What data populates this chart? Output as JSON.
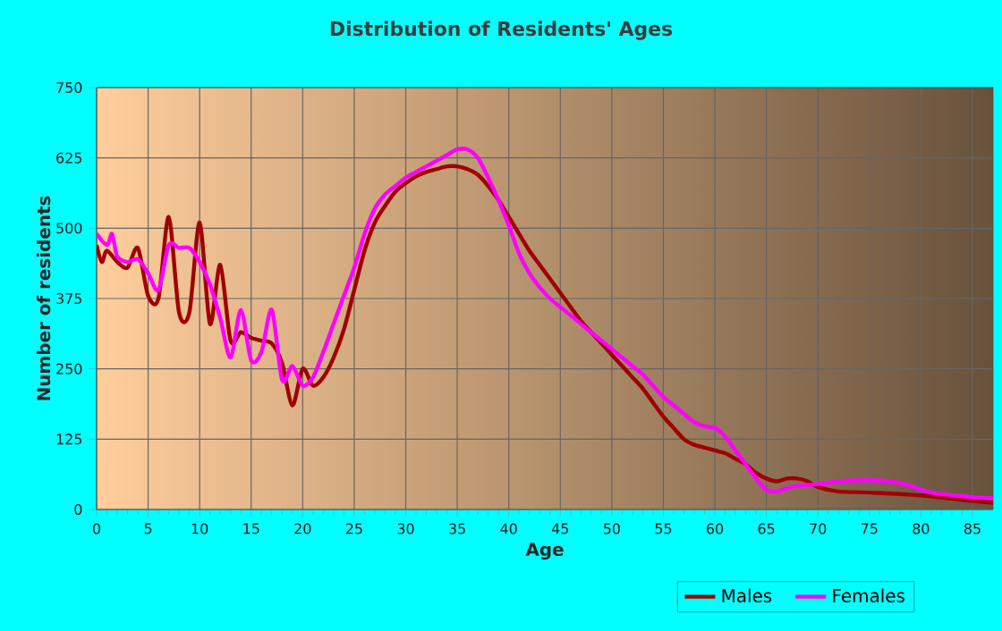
{
  "chart_data": {
    "type": "line",
    "title": "Distribution of Residents' Ages",
    "xlabel": "Age",
    "ylabel": "Number of residents",
    "xlim": [
      0,
      87
    ],
    "xticks": [
      0,
      5,
      10,
      15,
      20,
      25,
      30,
      35,
      40,
      45,
      50,
      55,
      60,
      65,
      70,
      75,
      80,
      85
    ],
    "ylim": [
      0,
      750
    ],
    "yticks": [
      0,
      125,
      250,
      375,
      500,
      625,
      750
    ],
    "grid": true,
    "legend": "bottom",
    "marker": "none",
    "line_style": "solid",
    "series": [
      {
        "name": "Males",
        "color": "#a00000",
        "x": [
          0,
          0.5,
          1,
          2,
          3,
          4,
          5,
          6,
          7,
          8,
          9,
          10,
          11,
          12,
          13,
          14,
          15,
          16,
          17,
          18,
          19,
          20,
          21,
          22,
          23,
          24,
          25,
          26,
          27,
          28,
          29,
          30,
          31,
          32,
          33,
          34,
          35,
          36,
          37,
          38,
          39,
          40,
          41,
          42,
          43,
          44,
          45,
          46,
          47,
          48,
          49,
          50,
          51,
          52,
          53,
          54,
          55,
          56,
          57,
          58,
          59,
          60,
          61,
          62,
          63,
          64,
          65,
          66,
          67,
          68,
          69,
          70,
          72,
          75,
          80,
          85,
          87
        ],
        "values": [
          470,
          440,
          460,
          440,
          430,
          465,
          380,
          375,
          520,
          350,
          350,
          510,
          330,
          435,
          300,
          315,
          305,
          300,
          295,
          260,
          185,
          250,
          220,
          235,
          270,
          320,
          390,
          460,
          510,
          540,
          565,
          580,
          592,
          600,
          605,
          610,
          610,
          605,
          595,
          575,
          550,
          520,
          490,
          460,
          435,
          410,
          385,
          360,
          335,
          315,
          295,
          275,
          255,
          235,
          215,
          190,
          165,
          145,
          125,
          115,
          110,
          105,
          100,
          90,
          80,
          65,
          55,
          50,
          55,
          55,
          50,
          40,
          32,
          30,
          25,
          15,
          12
        ]
      },
      {
        "name": "Females",
        "color": "#ff00ff",
        "x": [
          0,
          1,
          1.5,
          2,
          3,
          4,
          5,
          6,
          7,
          8,
          9,
          10,
          11,
          12,
          13,
          14,
          15,
          16,
          17,
          18,
          19,
          20,
          21,
          22,
          23,
          24,
          25,
          26,
          27,
          28,
          29,
          30,
          31,
          32,
          33,
          34,
          35,
          36,
          37,
          38,
          39,
          40,
          41,
          42,
          43,
          44,
          45,
          46,
          47,
          48,
          49,
          50,
          51,
          52,
          53,
          54,
          55,
          56,
          57,
          58,
          59,
          60,
          61,
          62,
          63,
          64,
          65,
          66,
          67,
          68,
          70,
          72,
          75,
          77,
          79,
          81,
          85,
          87
        ],
        "values": [
          490,
          470,
          490,
          450,
          440,
          445,
          420,
          390,
          470,
          465,
          465,
          440,
          400,
          340,
          270,
          355,
          265,
          280,
          355,
          230,
          255,
          220,
          235,
          280,
          330,
          380,
          430,
          490,
          535,
          560,
          575,
          590,
          600,
          610,
          620,
          630,
          640,
          640,
          625,
          590,
          550,
          505,
          455,
          420,
          395,
          375,
          360,
          345,
          330,
          315,
          300,
          285,
          270,
          255,
          240,
          220,
          200,
          185,
          170,
          155,
          148,
          145,
          130,
          105,
          80,
          55,
          35,
          32,
          38,
          42,
          45,
          50,
          52,
          50,
          42,
          30,
          22,
          20
        ]
      }
    ]
  }
}
